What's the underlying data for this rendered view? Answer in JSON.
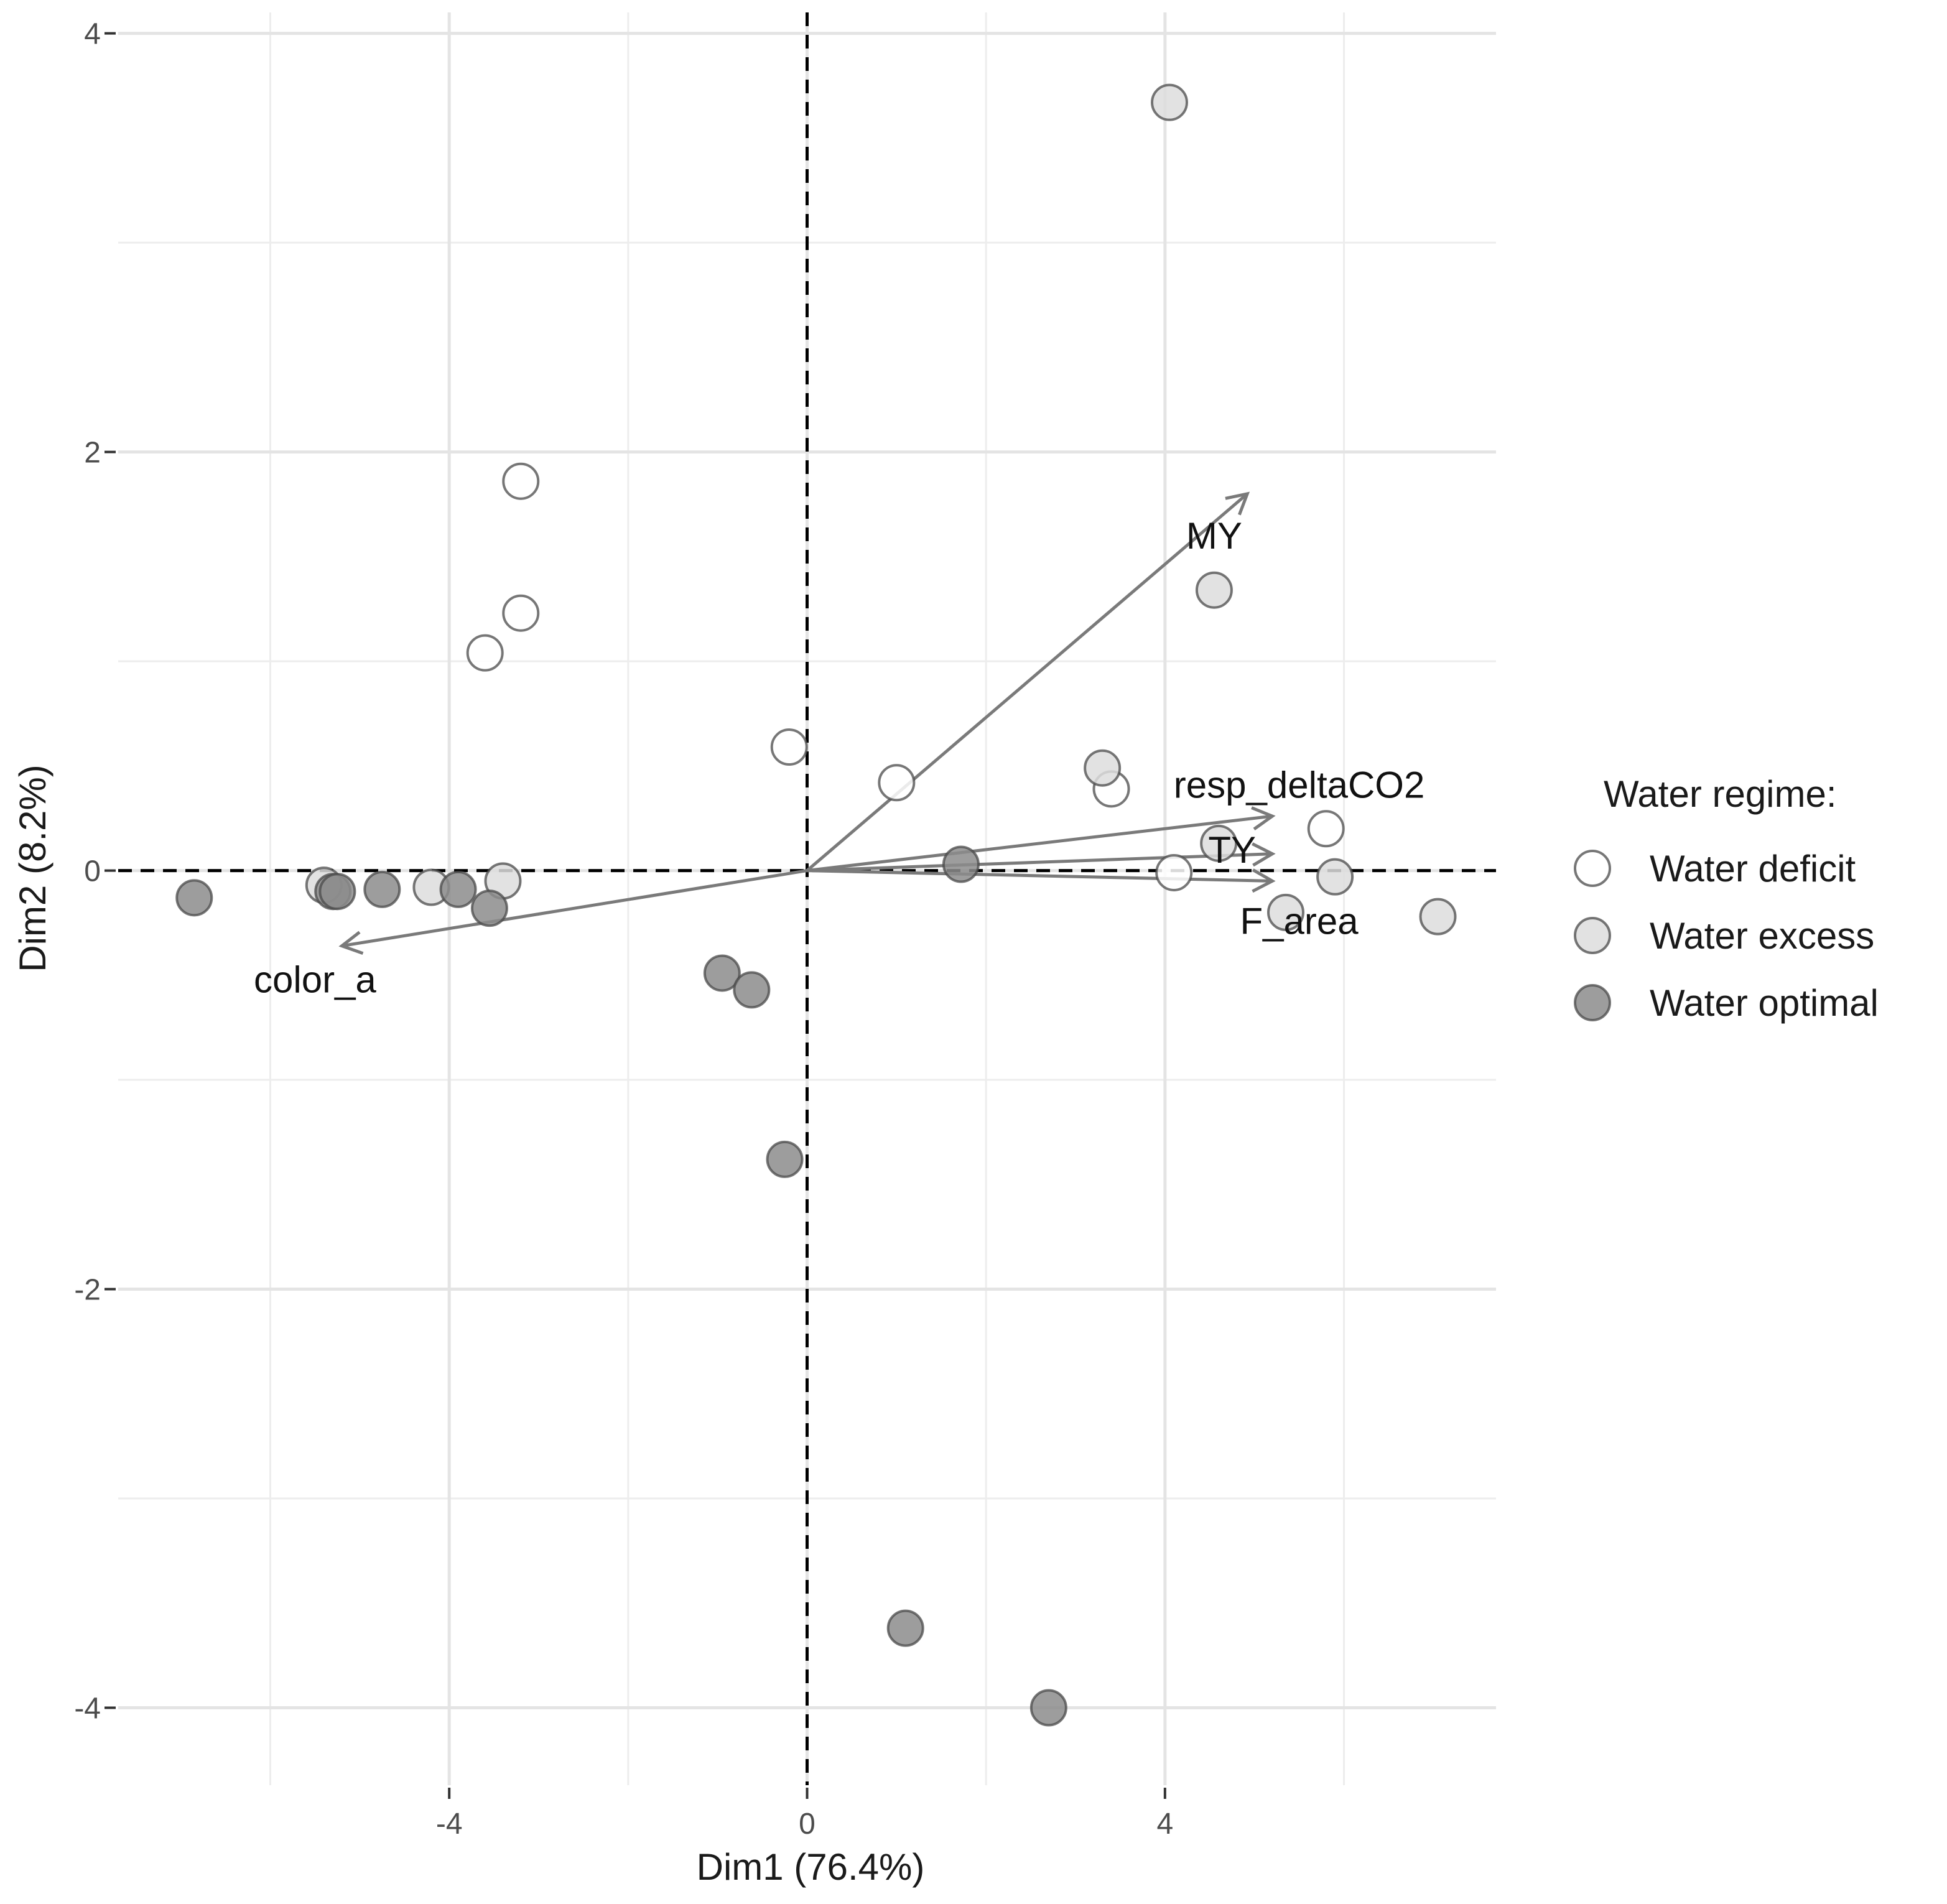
{
  "chart_data": {
    "type": "scatter",
    "subtype": "pca-biplot",
    "title": "",
    "xlabel": "Dim1 (76.4%)",
    "ylabel": "Dim2 (8.2%)",
    "xlim": [
      -7.7,
      7.7
    ],
    "ylim": [
      -4.37,
      4.1
    ],
    "x_ticks": [
      {
        "value": -4,
        "label": "-4"
      },
      {
        "value": 0,
        "label": "0"
      },
      {
        "value": 4,
        "label": "4"
      }
    ],
    "y_ticks": [
      {
        "value": -4,
        "label": "-4"
      },
      {
        "value": -2,
        "label": "-2"
      },
      {
        "value": 0,
        "label": "0"
      },
      {
        "value": 2,
        "label": "2"
      },
      {
        "value": 4,
        "label": "4"
      }
    ],
    "x_minor_grid": [
      -6,
      -2,
      2,
      6
    ],
    "y_minor_grid": [
      -3,
      -1,
      1,
      3
    ],
    "grid": true,
    "reference_lines": {
      "x": 0,
      "y": 0,
      "style": "dashed"
    },
    "legend": {
      "title": "Water regime:",
      "position": "right",
      "entries": [
        {
          "label": "Water deficit",
          "fill": "#ffffff"
        },
        {
          "label": "Water excess",
          "fill": "#dddddd"
        },
        {
          "label": "Water optimal",
          "fill": "#8c8c8c"
        }
      ]
    },
    "series": [
      {
        "name": "Water deficit",
        "fill": "#ffffff",
        "points": [
          {
            "x": -3.2,
            "y": 1.86
          },
          {
            "x": -3.2,
            "y": 1.23
          },
          {
            "x": -3.6,
            "y": 1.04
          },
          {
            "x": -0.2,
            "y": 0.59
          },
          {
            "x": 1.0,
            "y": 0.42
          },
          {
            "x": 3.4,
            "y": 0.39
          },
          {
            "x": 5.8,
            "y": 0.2
          },
          {
            "x": 4.1,
            "y": -0.01
          }
        ]
      },
      {
        "name": "Water excess",
        "fill": "#dddddd",
        "points": [
          {
            "x": 4.05,
            "y": 3.67
          },
          {
            "x": 4.55,
            "y": 1.34
          },
          {
            "x": 3.3,
            "y": 0.49
          },
          {
            "x": 4.6,
            "y": 0.13
          },
          {
            "x": 5.9,
            "y": -0.03
          },
          {
            "x": 5.35,
            "y": -0.2
          },
          {
            "x": 7.05,
            "y": -0.22
          },
          {
            "x": -3.4,
            "y": -0.05
          },
          {
            "x": -4.2,
            "y": -0.08
          },
          {
            "x": -5.4,
            "y": -0.07
          }
        ]
      },
      {
        "name": "Water optimal",
        "fill": "#8c8c8c",
        "points": [
          {
            "x": -6.85,
            "y": -0.13
          },
          {
            "x": -5.3,
            "y": -0.1
          },
          {
            "x": -5.25,
            "y": -0.1
          },
          {
            "x": -4.75,
            "y": -0.09
          },
          {
            "x": -3.9,
            "y": -0.09
          },
          {
            "x": -3.55,
            "y": -0.18
          },
          {
            "x": 1.72,
            "y": 0.03
          },
          {
            "x": -0.95,
            "y": -0.49
          },
          {
            "x": -0.62,
            "y": -0.57
          },
          {
            "x": -0.25,
            "y": -1.38
          },
          {
            "x": 1.1,
            "y": -3.62
          },
          {
            "x": 2.7,
            "y": -4.0
          }
        ]
      }
    ],
    "variables": [
      {
        "name": "MY",
        "x": 4.92,
        "y": 1.8,
        "label_x": 4.55,
        "label_y": 1.6
      },
      {
        "name": "resp_deltaCO2",
        "x": 5.2,
        "y": 0.26,
        "label_x": 5.5,
        "label_y": 0.41
      },
      {
        "name": "TY",
        "x": 5.2,
        "y": 0.08,
        "label_x": 4.75,
        "label_y": 0.1
      },
      {
        "name": "F_area",
        "x": 5.2,
        "y": -0.05,
        "label_x": 5.5,
        "label_y": -0.24
      },
      {
        "name": "color_a",
        "x": -5.2,
        "y": -0.36,
        "label_x": -5.5,
        "label_y": -0.52
      }
    ]
  }
}
